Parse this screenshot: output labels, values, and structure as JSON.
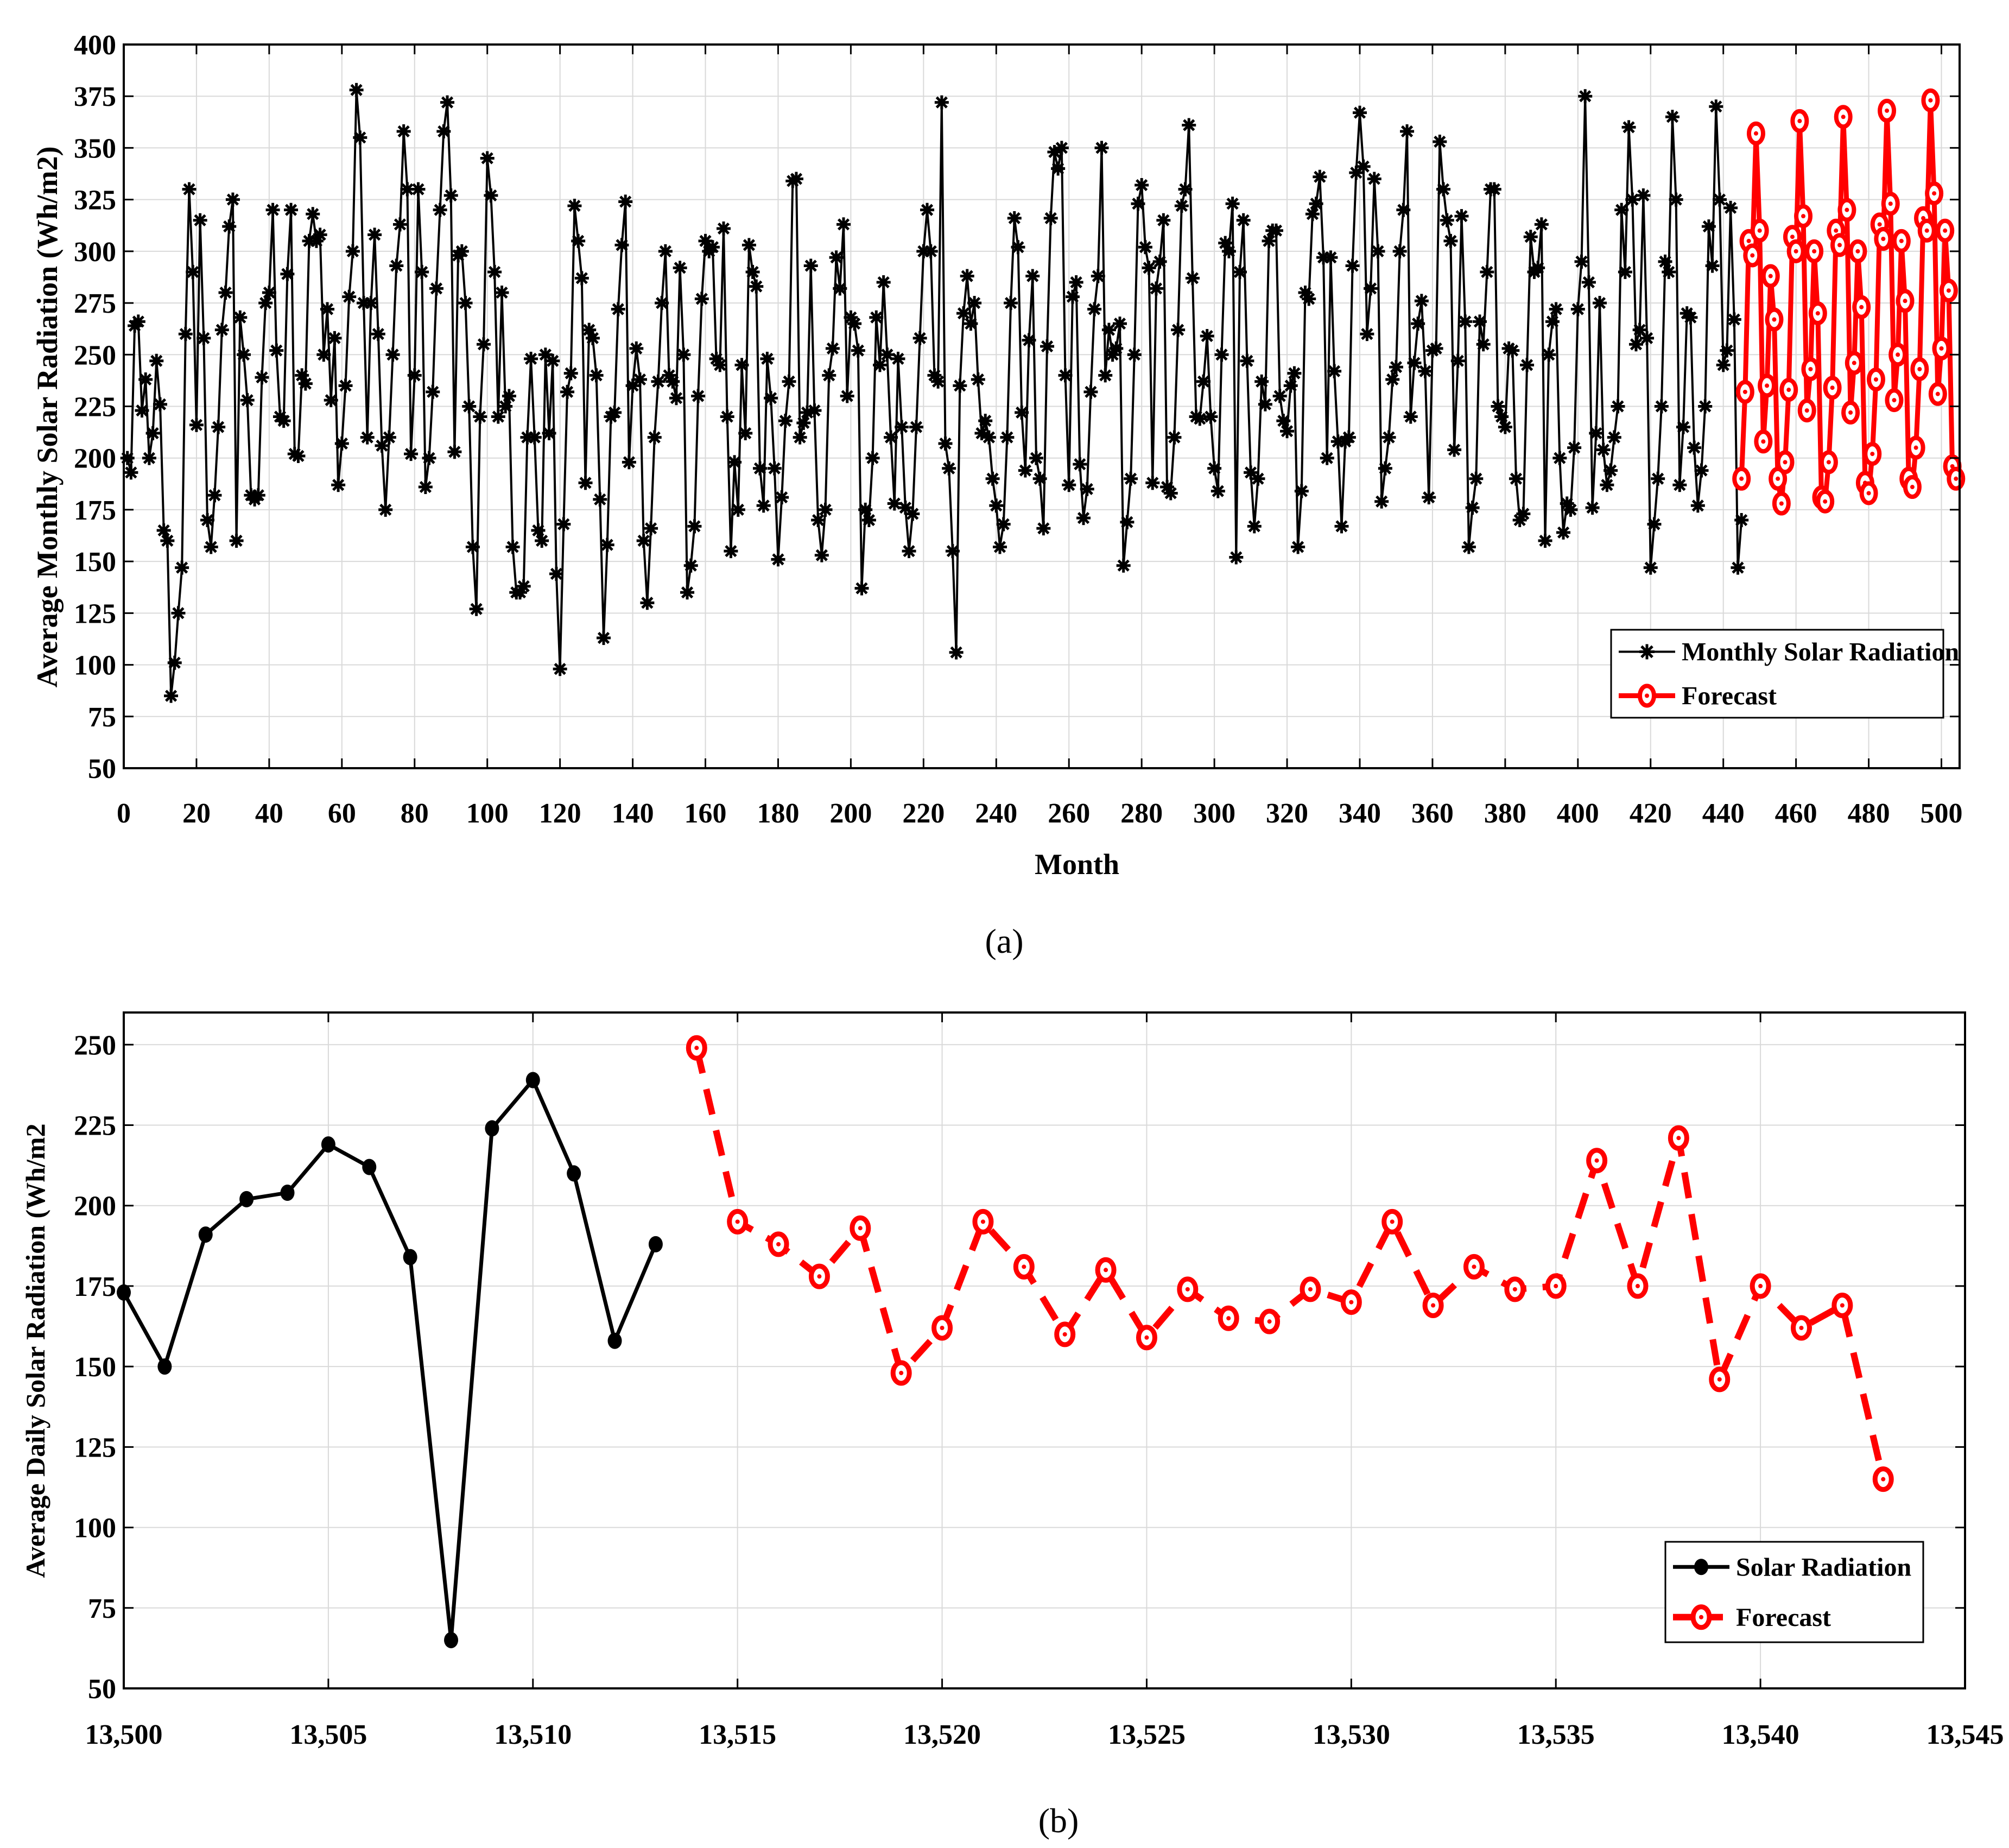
{
  "colors": {
    "observed": "#000000",
    "forecast": "#ff0000",
    "grid": "#d9d9d9"
  },
  "chart_data": [
    {
      "id": "a",
      "type": "line",
      "panel_label": "(a)",
      "xlabel": "Month",
      "ylabel": "Average Monthly Solar Radiation (Wh/m2)",
      "xlim": [
        0,
        505
      ],
      "ylim": [
        50,
        400
      ],
      "xticks": [
        0,
        20,
        40,
        60,
        80,
        100,
        120,
        140,
        160,
        180,
        200,
        220,
        240,
        260,
        280,
        300,
        320,
        340,
        360,
        380,
        400,
        420,
        440,
        460,
        480,
        500
      ],
      "xtick_labels": [
        "0",
        "20",
        "40",
        "60",
        "80",
        "100",
        "120",
        "140",
        "160",
        "180",
        "200",
        "220",
        "240",
        "260",
        "280",
        "300",
        "320",
        "340",
        "360",
        "380",
        "400",
        "420",
        "440",
        "460",
        "480",
        "500"
      ],
      "yticks": [
        50,
        75,
        100,
        125,
        150,
        175,
        200,
        225,
        250,
        275,
        300,
        325,
        350,
        375,
        400
      ],
      "ytick_labels": [
        "50",
        "75",
        "100",
        "125",
        "150",
        "175",
        "200",
        "225",
        "250",
        "275",
        "300",
        "325",
        "350",
        "375",
        "400"
      ],
      "grid": true,
      "legend_position": "bottom-right",
      "series": [
        {
          "name": "Monthly Solar Radiation",
          "style": "solid-star",
          "color": "#000000",
          "x_start": 1,
          "values": [
            200,
            193,
            264,
            266,
            223,
            238,
            200,
            212,
            247,
            226,
            165,
            160,
            85,
            101,
            125,
            147,
            260,
            330,
            290,
            216,
            315,
            258,
            170,
            157,
            182,
            215,
            262,
            280,
            312,
            325,
            160,
            268,
            250,
            228,
            182,
            180,
            182,
            239,
            275,
            280,
            320,
            252,
            220,
            218,
            289,
            320,
            202,
            201,
            240,
            236,
            305,
            318,
            305,
            308,
            250,
            272,
            228,
            258,
            187,
            207,
            235,
            278,
            300,
            378,
            355,
            275,
            210,
            275,
            308,
            260,
            206,
            175,
            210,
            250,
            293,
            313,
            358,
            330,
            202,
            240,
            330,
            290,
            186,
            200,
            232,
            282,
            320,
            358,
            372,
            327,
            203,
            298,
            300,
            275,
            225,
            157,
            127,
            220,
            255,
            345,
            327,
            290,
            220,
            280,
            225,
            230,
            157,
            135,
            135,
            138,
            210,
            248,
            210,
            165,
            160,
            250,
            212,
            247,
            144,
            98,
            168,
            232,
            241,
            322,
            305,
            287,
            188,
            262,
            258,
            240,
            180,
            113,
            158,
            220,
            222,
            272,
            303,
            324,
            198,
            235,
            253,
            238,
            160,
            130,
            166,
            210,
            237,
            275,
            300,
            240,
            237,
            229,
            292,
            250,
            135,
            148,
            167,
            230,
            277,
            305,
            300,
            302,
            248,
            245,
            311,
            220,
            155,
            198,
            175,
            245,
            212,
            303,
            290,
            283,
            195,
            177,
            248,
            229,
            195,
            151,
            181,
            218,
            237,
            334,
            335,
            210,
            217,
            222,
            293,
            223,
            170,
            153,
            175,
            240,
            253,
            297,
            282,
            313,
            230,
            268,
            265,
            252,
            137,
            175,
            170,
            200,
            268,
            245,
            285,
            250,
            210,
            178,
            248,
            215,
            176,
            155,
            173,
            215,
            258,
            300,
            320,
            300,
            240,
            237,
            372,
            207,
            195,
            155,
            106,
            235,
            270,
            288,
            265,
            275,
            238,
            212,
            218,
            210,
            190,
            177,
            157,
            168,
            210,
            275,
            316,
            302,
            222,
            194,
            257,
            288,
            200,
            190,
            166,
            254,
            316,
            348,
            340,
            350,
            240,
            187,
            278,
            285,
            197,
            171,
            185,
            232,
            272,
            288,
            350,
            240,
            262,
            250,
            253,
            265,
            148,
            169,
            190,
            250,
            323,
            332,
            302,
            292,
            188,
            282,
            295,
            315,
            186,
            183,
            210,
            262,
            322,
            330,
            361,
            287,
            220,
            219,
            237,
            259,
            220,
            195,
            184,
            250,
            304,
            300,
            323,
            152,
            290,
            315,
            247,
            193,
            167,
            190,
            237,
            226,
            305,
            310,
            310,
            230,
            218,
            213,
            235,
            241,
            157,
            184,
            280,
            277,
            318,
            323,
            336,
            297,
            200,
            297,
            242,
            208,
            167,
            208,
            210,
            293,
            338,
            367,
            341,
            260,
            282,
            335,
            300,
            179,
            195,
            210,
            238,
            244,
            300,
            320,
            358,
            220,
            246,
            265,
            276,
            242,
            181,
            252,
            253,
            353,
            330,
            315,
            305,
            204,
            247,
            317,
            266,
            157,
            176,
            190,
            266,
            255,
            290,
            330,
            330,
            225,
            220,
            215,
            253,
            252,
            190,
            170,
            173,
            245,
            307,
            290,
            292,
            313,
            160,
            250,
            266,
            272,
            200,
            164,
            178,
            175,
            205,
            272,
            295,
            375,
            285,
            176,
            212,
            275,
            204,
            187,
            194,
            210,
            225,
            320,
            290,
            360,
            325,
            255,
            262,
            327,
            258,
            147,
            168,
            190,
            225,
            295,
            290,
            365,
            325,
            187,
            215,
            270,
            268,
            205,
            177,
            194,
            225,
            312,
            293,
            370,
            325,
            245,
            252,
            321,
            267,
            147,
            170
          ]
        },
        {
          "name": "Forecast",
          "style": "solid-circle",
          "color": "#ff0000",
          "x_start": 445,
          "values": [
            190,
            232,
            305,
            298,
            357,
            310,
            208,
            235,
            288,
            267,
            190,
            178,
            198,
            233,
            307,
            300,
            363,
            317,
            223,
            243,
            300,
            270,
            181,
            179,
            198,
            234,
            310,
            303,
            365,
            320,
            222,
            246,
            300,
            273,
            188,
            183,
            202,
            238,
            313,
            306,
            368,
            323,
            228,
            250,
            305,
            276,
            190,
            186,
            205,
            243,
            316,
            310,
            373,
            328,
            231,
            253,
            310,
            281,
            196,
            190
          ]
        }
      ]
    },
    {
      "id": "b",
      "type": "line",
      "panel_label": "(b)",
      "xlabel": "",
      "ylabel": "Average Daily Solar Radiation (Wh/m2",
      "xlim": [
        13500,
        13545
      ],
      "ylim": [
        50,
        260
      ],
      "xticks": [
        13500,
        13505,
        13510,
        13515,
        13520,
        13525,
        13530,
        13535,
        13540,
        13545
      ],
      "xtick_labels": [
        "13,500",
        "13,505",
        "13,510",
        "13,515",
        "13,520",
        "13,525",
        "13,530",
        "13,535",
        "13,540",
        "13,545"
      ],
      "yticks": [
        50,
        75,
        100,
        125,
        150,
        175,
        200,
        225,
        250
      ],
      "ytick_labels": [
        "50",
        "75",
        "100",
        "125",
        "150",
        "175",
        "200",
        "225",
        "250"
      ],
      "grid": true,
      "legend_position": "bottom-right",
      "series": [
        {
          "name": "Solar Radiation",
          "style": "solid-dot",
          "color": "#000000",
          "x_start": 13500,
          "values": [
            173,
            150,
            191,
            202,
            204,
            219,
            212,
            184,
            65,
            224,
            239,
            210,
            158,
            188
          ]
        },
        {
          "name": "Forecast",
          "style": "dashed-circle",
          "color": "#ff0000",
          "x_start": 13514,
          "values": [
            249,
            195,
            188,
            178,
            193,
            148,
            162,
            195,
            181,
            160,
            180,
            159,
            174,
            165,
            164,
            174,
            170,
            195,
            169,
            181,
            174,
            175,
            214,
            175,
            221,
            146,
            175,
            162,
            169,
            115
          ]
        }
      ]
    }
  ]
}
